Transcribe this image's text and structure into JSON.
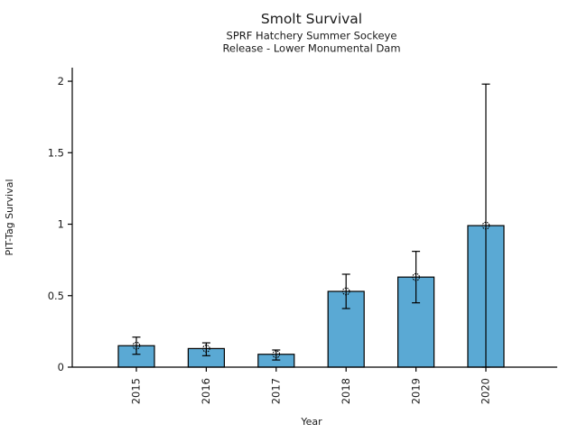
{
  "chart_data": {
    "type": "bar",
    "title": "Smolt Survival",
    "subtitle1": "SPRF Hatchery Summer Sockeye",
    "subtitle2": "Release - Lower Monumental Dam",
    "xlabel": "Year",
    "ylabel": "PIT-Tag Survival",
    "categories": [
      "2015",
      "2016",
      "2017",
      "2018",
      "2019",
      "2020"
    ],
    "values": [
      0.15,
      0.13,
      0.09,
      0.53,
      0.63,
      0.99
    ],
    "error_low": [
      0.09,
      0.08,
      0.05,
      0.41,
      0.45,
      0.0
    ],
    "error_high": [
      0.21,
      0.17,
      0.12,
      0.65,
      0.81,
      1.98
    ],
    "yticks": [
      0,
      0.5,
      1,
      1.5,
      2
    ],
    "ytick_labels": [
      "0",
      "0.5",
      "1",
      "1.5",
      "2"
    ],
    "ylim": [
      0,
      2.095
    ],
    "grid": false,
    "legend": null,
    "colors": {
      "bar_fill": "#5AA9D4",
      "bar_edge": "#000000",
      "error_bar": "#000000",
      "marker_edge": "#000000",
      "axis": "#000000",
      "text": "#1a1a1a",
      "background": "#ffffff"
    }
  }
}
